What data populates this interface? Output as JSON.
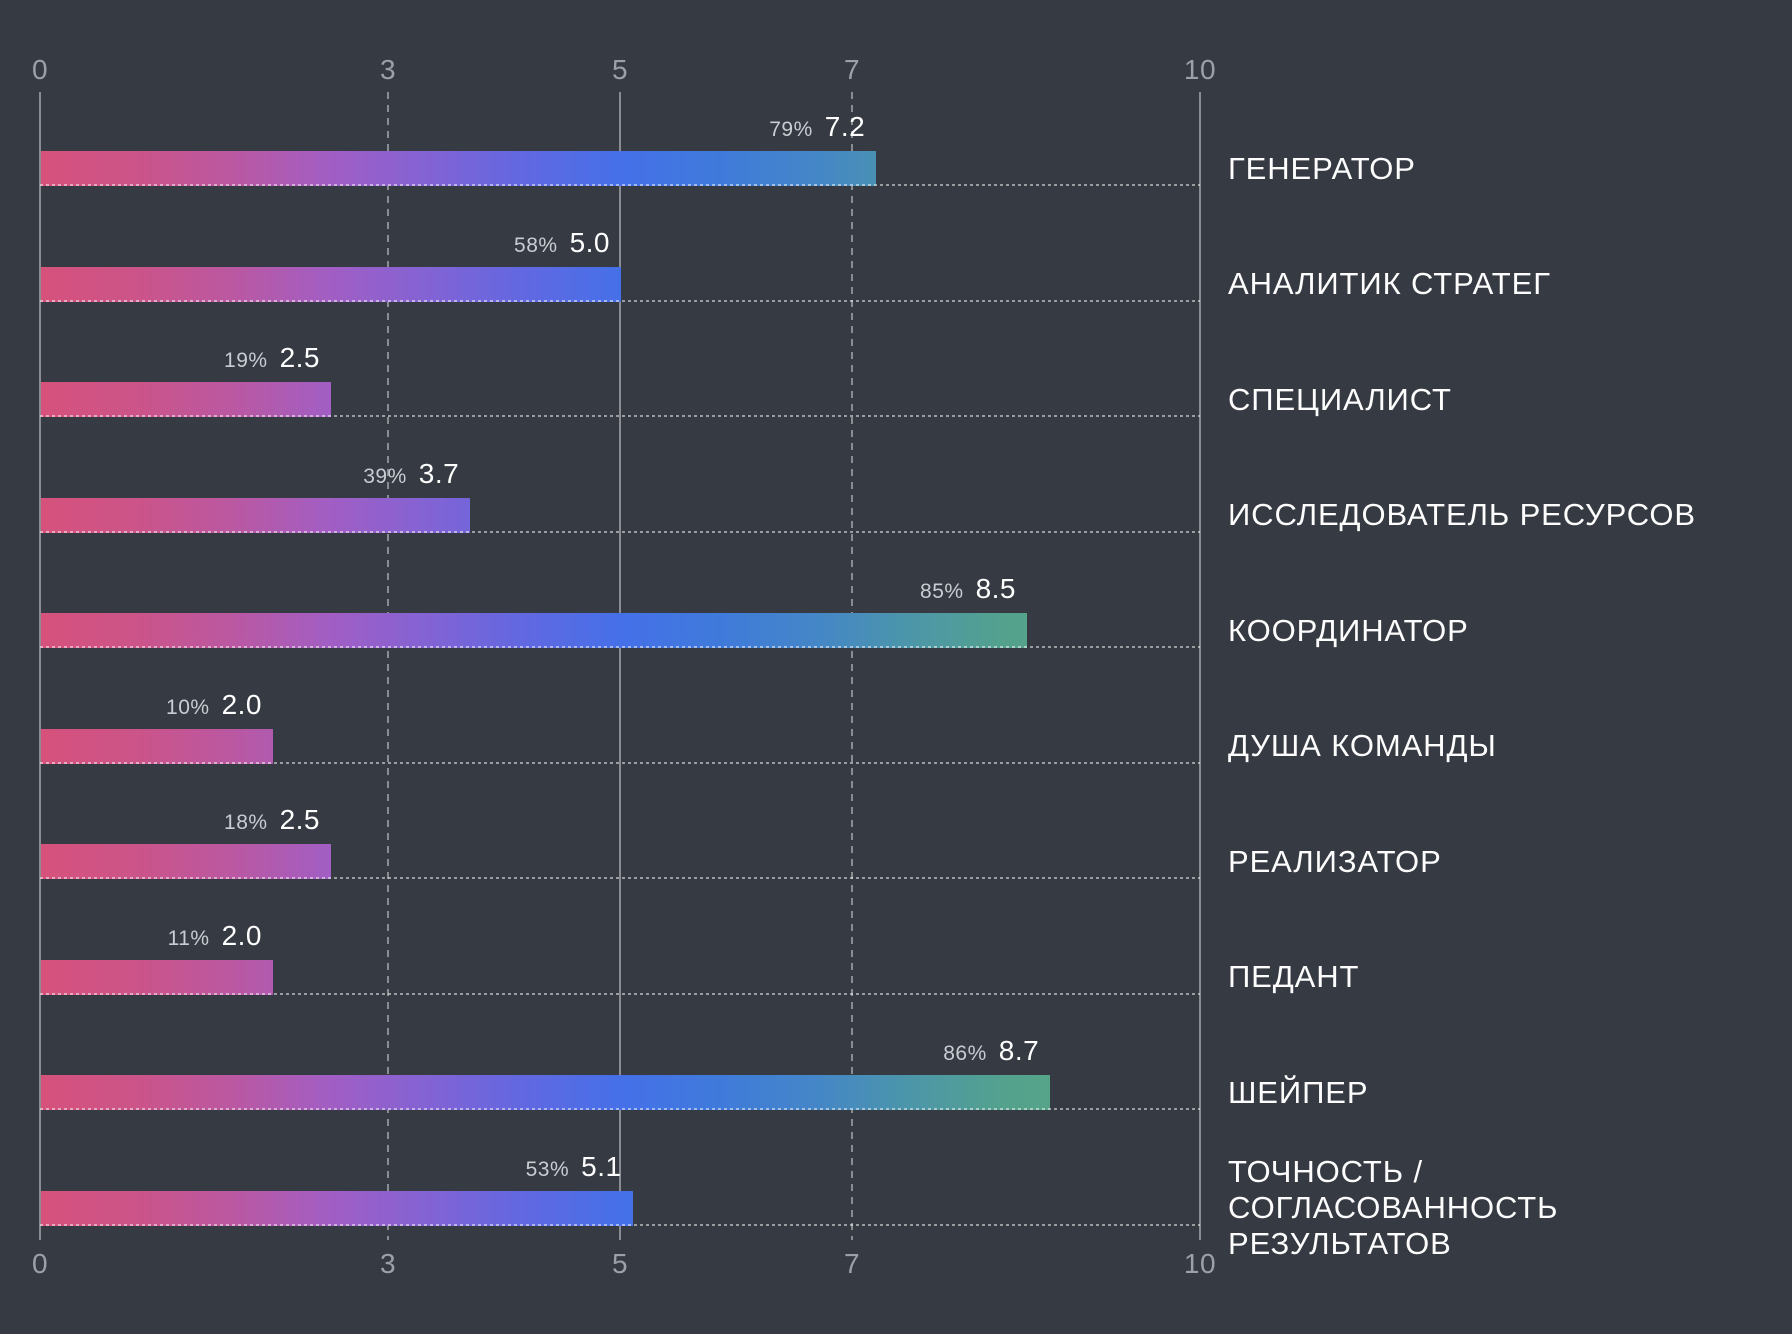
{
  "colors": {
    "background": "#363a42",
    "grid": "rgba(255,255,255,0.42)",
    "tick_label": "#9ba1a9",
    "percent_label": "#c9cdd3",
    "value_label": "#ffffff",
    "category_label": "#fdfdfe",
    "bar_gradient_stops": [
      "#d6527c",
      "#cb5489",
      "#ba58a2",
      "#a15ec4",
      "#8363d4",
      "#6168e1",
      "#4570e8",
      "#3f7adb",
      "#4486c8",
      "#4c96a9",
      "#54a28c",
      "#58a684",
      "#5baa7d"
    ]
  },
  "axis": {
    "min": 0,
    "max": 10,
    "ticks": [
      {
        "label": "0",
        "value": 0,
        "style": "solid"
      },
      {
        "label": "3",
        "value": 3,
        "style": "dashed"
      },
      {
        "label": "5",
        "value": 5,
        "style": "solid"
      },
      {
        "label": "7",
        "value": 7,
        "style": "dashed"
      },
      {
        "label": "10",
        "value": 10,
        "style": "solid"
      }
    ]
  },
  "chart_data": {
    "type": "bar",
    "orientation": "horizontal",
    "title": "",
    "xlabel": "",
    "ylabel": "",
    "xlim": [
      0,
      10
    ],
    "xticks": [
      0,
      3,
      5,
      7,
      10
    ],
    "grid": "vertical, solid at 0/5/10, dashed at 3/7, dotted row guides",
    "legend": "none",
    "categories": [
      "ГЕНЕРАТОР",
      "АНАЛИТИК СТРАТЕГ",
      "СПЕЦИАЛИСТ",
      "ИССЛЕДОВАТЕЛЬ РЕСУРСОВ",
      "КООРДИНАТОР",
      "ДУША КОМАНДЫ",
      "РЕАЛИЗАТОР",
      "ПЕДАНТ",
      "ШЕЙПЕР",
      "ТОЧНОСТЬ /\nСОГЛАСОВАННОСТЬ\nРЕЗУЛЬТАТОВ"
    ],
    "values": [
      7.2,
      5.0,
      2.5,
      3.7,
      8.5,
      2.0,
      2.5,
      2.0,
      8.7,
      5.1
    ],
    "percents": [
      "79%",
      "58%",
      "19%",
      "39%",
      "85%",
      "10%",
      "18%",
      "11%",
      "86%",
      "53%"
    ],
    "rows": [
      {
        "label": "ГЕНЕРАТОР",
        "percent": "79%",
        "value": "7.2",
        "numeric": 7.2
      },
      {
        "label": "АНАЛИТИК СТРАТЕГ",
        "percent": "58%",
        "value": "5.0",
        "numeric": 5.0
      },
      {
        "label": "СПЕЦИАЛИСТ",
        "percent": "19%",
        "value": "2.5",
        "numeric": 2.5
      },
      {
        "label": "ИССЛЕДОВАТЕЛЬ РЕСУРСОВ",
        "percent": "39%",
        "value": "3.7",
        "numeric": 3.7
      },
      {
        "label": "КООРДИНАТОР",
        "percent": "85%",
        "value": "8.5",
        "numeric": 8.5
      },
      {
        "label": "ДУША КОМАНДЫ",
        "percent": "10%",
        "value": "2.0",
        "numeric": 2.0
      },
      {
        "label": "РЕАЛИЗАТОР",
        "percent": "18%",
        "value": "2.5",
        "numeric": 2.5
      },
      {
        "label": "ПЕДАНТ",
        "percent": "11%",
        "value": "2.0",
        "numeric": 2.0
      },
      {
        "label": "ШЕЙПЕР",
        "percent": "86%",
        "value": "8.7",
        "numeric": 8.7
      },
      {
        "label": "ТОЧНОСТЬ /\nСОГЛАСОВАННОСТЬ\nРЕЗУЛЬТАТОВ",
        "percent": "53%",
        "value": "5.1",
        "numeric": 5.1
      }
    ]
  }
}
